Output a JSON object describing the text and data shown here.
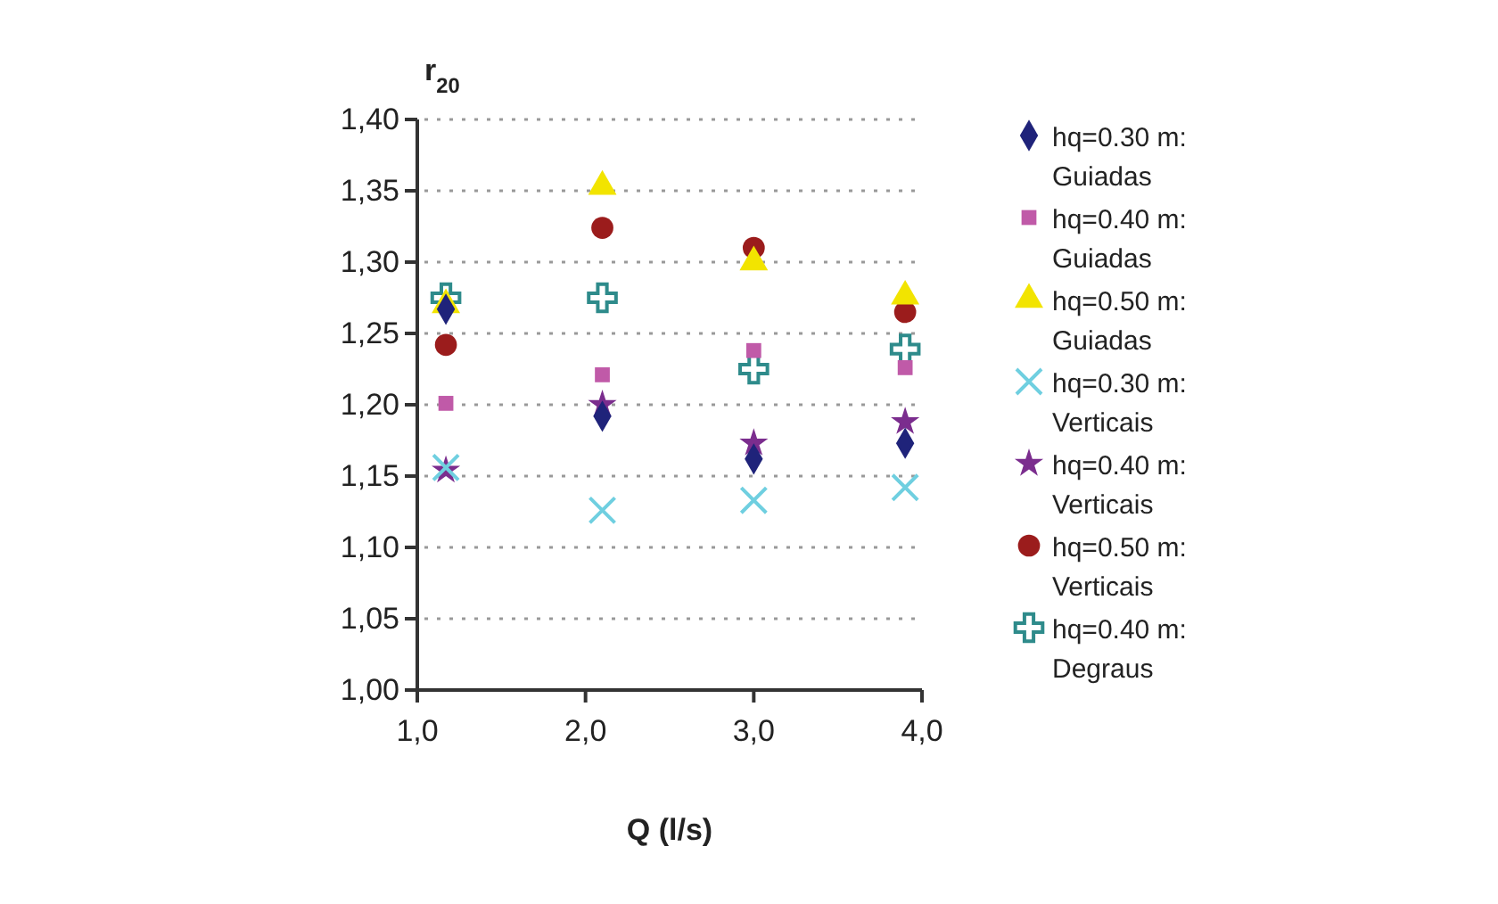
{
  "chart_data": {
    "type": "scatter",
    "xlabel": "Q (l/s)",
    "ylabel": "r$_{20}$",
    "x": [
      1.17,
      2.1,
      3.0,
      3.9
    ],
    "xlim": [
      1.0,
      4.0
    ],
    "xticks": [
      {
        "value": 1,
        "label": "1,0"
      },
      {
        "value": 2,
        "label": "2,0"
      },
      {
        "value": 3,
        "label": "3,0"
      },
      {
        "value": 4,
        "label": "4,0"
      }
    ],
    "ylim": [
      1.0,
      1.4
    ],
    "yticks": [
      {
        "value": 1.0,
        "label": "1,00"
      },
      {
        "value": 1.05,
        "label": "1,05"
      },
      {
        "value": 1.1,
        "label": "1,10"
      },
      {
        "value": 1.15,
        "label": "1,15"
      },
      {
        "value": 1.2,
        "label": "1,20"
      },
      {
        "value": 1.25,
        "label": "1,25"
      },
      {
        "value": 1.3,
        "label": "1,30"
      },
      {
        "value": 1.35,
        "label": "1,35"
      },
      {
        "value": 1.4,
        "label": "1,40"
      }
    ],
    "grid": "y",
    "legend": "right",
    "series": [
      {
        "name": "hq=0.30 m: Guiadas",
        "color": "#1f237a",
        "marker": "diamond",
        "values": [
          1.267,
          1.192,
          1.162,
          1.173
        ]
      },
      {
        "name": "hq=0.40 m: Guiadas",
        "color": "#c05aa8",
        "marker": "square",
        "values": [
          1.201,
          1.221,
          1.238,
          1.226
        ]
      },
      {
        "name": "hq=0.50 m: Guiadas",
        "color": "#f2e400",
        "marker": "triangle",
        "values": [
          1.27,
          1.353,
          1.3,
          1.276
        ]
      },
      {
        "name": "hq=0.30 m: Verticais",
        "color": "#6fcfe0",
        "marker": "x",
        "values": [
          1.156,
          1.126,
          1.133,
          1.142
        ]
      },
      {
        "name": "hq=0.40 m: Verticais",
        "color": "#7b2d8e",
        "marker": "star",
        "values": [
          1.154,
          1.2,
          1.173,
          1.188
        ]
      },
      {
        "name": "hq=0.50 m: Verticais",
        "color": "#9b1c1c",
        "marker": "circle",
        "values": [
          1.242,
          1.324,
          1.31,
          1.265
        ]
      },
      {
        "name": "hq=0.40 m: Degraus",
        "color": "#2e8b8b",
        "marker": "cross",
        "values": [
          1.275,
          1.275,
          1.225,
          1.239
        ]
      }
    ]
  }
}
